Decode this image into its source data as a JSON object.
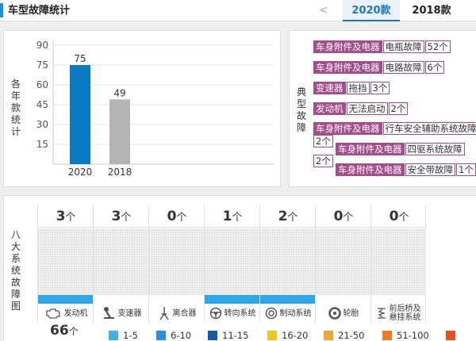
{
  "header": {
    "title": "车型故障统计",
    "prev": "<",
    "tabs": [
      {
        "label": "2020款"
      },
      {
        "label": "2018款"
      }
    ]
  },
  "chart": {
    "side_label": [
      "各",
      "年",
      "款",
      "统",
      "计"
    ]
  },
  "chart_data": {
    "type": "bar",
    "categories": [
      "2020",
      "2018"
    ],
    "values": [
      75,
      49
    ],
    "colors": [
      "#0a7bc2",
      "#b4b4b4"
    ],
    "yticks": [
      15,
      30,
      45,
      60,
      75,
      90
    ],
    "ylim": [
      0,
      90
    ],
    "grid": true
  },
  "faults": {
    "side_label": [
      "典",
      "型",
      "故",
      "障"
    ],
    "rows": [
      {
        "category": "车身附件及电器",
        "part": "电瓶故障",
        "count": "52个"
      },
      {
        "category": "车身附件及电器",
        "part": "电路故障",
        "count": "6个"
      },
      {
        "category": "变速器",
        "part": "拖挡",
        "count": "3个"
      },
      {
        "category": "发动机",
        "part": "无法启动",
        "count": "2个"
      },
      {
        "category": "车身附件及电器",
        "part": "行车安全辅助系统故障",
        "count": ""
      },
      {
        "category": "车身附件及电器",
        "part": "四驱系统故障",
        "count": ""
      },
      {
        "category": "车身附件及电器",
        "part": "安全带故障",
        "count": "1个"
      }
    ],
    "loose_counts": [
      "2个",
      "2个"
    ]
  },
  "systems": {
    "side_label": [
      "八",
      "大",
      "系",
      "统",
      "故",
      "障",
      "图"
    ],
    "unit": "个",
    "items": [
      {
        "name": "发动机",
        "count": "3",
        "icon": "engine-icon"
      },
      {
        "name": "变速器",
        "count": "3",
        "icon": "gear-shifter-icon"
      },
      {
        "name": "离合器",
        "count": "0",
        "icon": "clutch-icon"
      },
      {
        "name": "转向系统",
        "count": "1",
        "icon": "steering-wheel-icon"
      },
      {
        "name": "制动系统",
        "count": "2",
        "icon": "brake-icon"
      },
      {
        "name": "轮胎",
        "count": "0",
        "icon": "tire-icon"
      },
      {
        "name": "前后桥及悬挂系统",
        "count": "0",
        "icon": "suspension-icon"
      }
    ],
    "total": "66",
    "total_unit": "个",
    "legend": [
      {
        "label": "1-5",
        "color": "#3fb1ef"
      },
      {
        "label": "6-10",
        "color": "#2d8be6"
      },
      {
        "label": "11-15",
        "color": "#0f5fae"
      },
      {
        "label": "16-20",
        "color": "#f5c518"
      },
      {
        "label": "21-50",
        "color": "#f3a435"
      },
      {
        "label": "51-100",
        "color": "#f07c1e"
      },
      {
        "label": "",
        "color": "#e8521c"
      }
    ]
  }
}
